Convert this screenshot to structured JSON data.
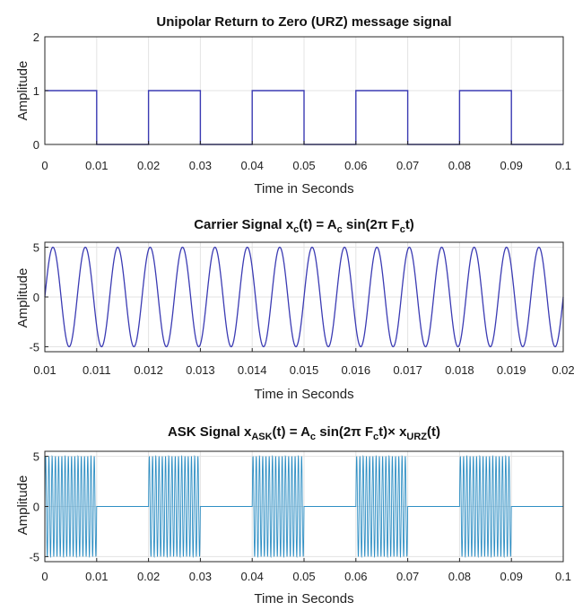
{
  "figure": {
    "background": "#ffffff"
  },
  "chart_data": [
    {
      "type": "line",
      "title": "Unipolar Return to Zero (URZ) message signal",
      "xlabel": "Time in Seconds",
      "ylabel": "Amplitude",
      "xlim": [
        0,
        0.1
      ],
      "ylim": [
        0,
        2
      ],
      "xticks": [
        "0",
        "0.01",
        "0.02",
        "0.03",
        "0.04",
        "0.05",
        "0.06",
        "0.07",
        "0.08",
        "0.09",
        "0.1"
      ],
      "yticks": [
        "0",
        "1",
        "2"
      ],
      "grid": true,
      "color": "#3b3bb3",
      "series": [
        {
          "x": [
            0,
            0.01,
            0.01,
            0.02,
            0.02,
            0.03,
            0.03,
            0.04,
            0.04,
            0.05,
            0.05,
            0.06,
            0.06,
            0.07,
            0.07,
            0.08,
            0.08,
            0.09,
            0.09,
            0.1
          ],
          "y": [
            1,
            1,
            0,
            0,
            1,
            1,
            0,
            0,
            1,
            1,
            0,
            0,
            1,
            1,
            0,
            0,
            1,
            1,
            0,
            0
          ]
        }
      ]
    },
    {
      "type": "line",
      "title": "Carrier Signal x_c(t) = A_c sin(2π F_c t)",
      "title_parts": [
        {
          "t": "Carrier Signal x"
        },
        {
          "t": "c",
          "sub": true
        },
        {
          "t": "(t) = A"
        },
        {
          "t": "c",
          "sub": true
        },
        {
          "t": " sin(2π F"
        },
        {
          "t": "c",
          "sub": true
        },
        {
          "t": "t)"
        }
      ],
      "xlabel": "Time in Seconds",
      "ylabel": "Amplitude",
      "xlim": [
        0.01,
        0.02
      ],
      "ylim": [
        -5.5,
        5.5
      ],
      "xticks": [
        "0.01",
        "0.011",
        "0.012",
        "0.013",
        "0.014",
        "0.015",
        "0.016",
        "0.017",
        "0.018",
        "0.019",
        "0.02"
      ],
      "yticks": [
        "-5",
        "0",
        "5"
      ],
      "grid": true,
      "color": "#3b3bb3",
      "amplitude": 5,
      "frequency_hz": 1600
    },
    {
      "type": "line",
      "title": "ASK Signal x_ASK(t) = A_c sin(2π F_c t) × x_URZ(t)",
      "title_parts": [
        {
          "t": "ASK Signal x"
        },
        {
          "t": "ASK",
          "sub": true
        },
        {
          "t": "(t) = A"
        },
        {
          "t": "c",
          "sub": true
        },
        {
          "t": " sin(2π F"
        },
        {
          "t": "c",
          "sub": true
        },
        {
          "t": "t)× x"
        },
        {
          "t": "URZ",
          "sub": true
        },
        {
          "t": "(t)"
        }
      ],
      "xlabel": "Time in Seconds",
      "ylabel": "Amplitude",
      "xlim": [
        0,
        0.1
      ],
      "ylim": [
        -5.5,
        5.5
      ],
      "xticks": [
        "0",
        "0.01",
        "0.02",
        "0.03",
        "0.04",
        "0.05",
        "0.06",
        "0.07",
        "0.08",
        "0.09",
        "0.1"
      ],
      "yticks": [
        "-5",
        "0",
        "5"
      ],
      "grid": true,
      "color": "#2f8fc4",
      "amplitude": 5,
      "frequency_hz": 1600,
      "on_intervals": [
        [
          0,
          0.01
        ],
        [
          0.02,
          0.03
        ],
        [
          0.04,
          0.05
        ],
        [
          0.06,
          0.07
        ],
        [
          0.08,
          0.09
        ]
      ]
    }
  ]
}
